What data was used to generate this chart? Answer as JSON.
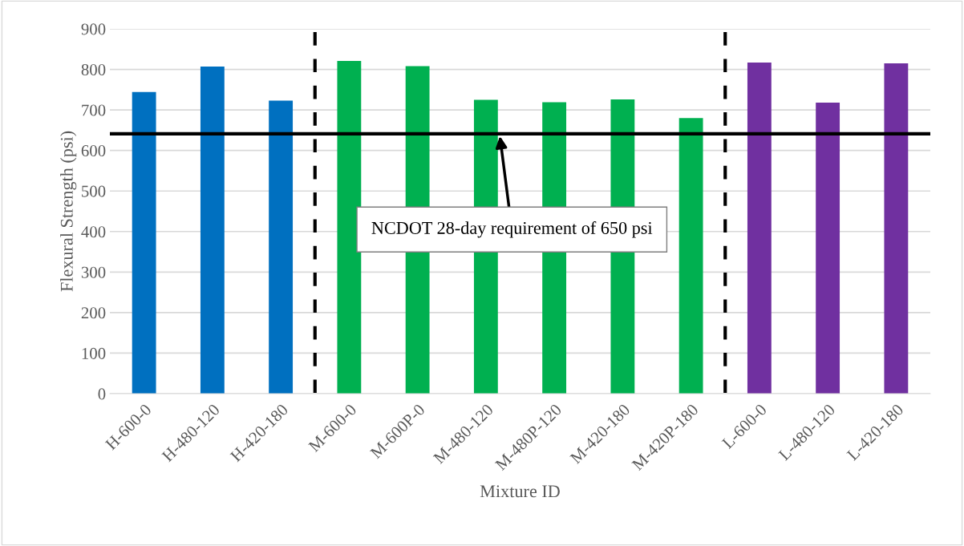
{
  "chart_data": {
    "type": "bar",
    "xlabel": "Mixture ID",
    "ylabel": "Flexural Strength (psi)",
    "categories": [
      "H-600-0",
      "H-480-120",
      "H-420-180",
      "M-600-0",
      "M-600P-0",
      "M-480-120",
      "M-480P-120",
      "M-420-180",
      "M-420P-180",
      "L-600-0",
      "L-480-120",
      "L-420-180"
    ],
    "values": [
      744,
      807,
      723,
      821,
      808,
      725,
      719,
      726,
      680,
      817,
      718,
      815
    ],
    "colors": [
      "#0070c0",
      "#0070c0",
      "#0070c0",
      "#00b050",
      "#00b050",
      "#00b050",
      "#00b050",
      "#00b050",
      "#00b050",
      "#7030a0",
      "#7030a0",
      "#7030a0"
    ],
    "ylim": [
      0,
      900
    ],
    "yticks": [
      0,
      100,
      200,
      300,
      400,
      500,
      600,
      700,
      800,
      900
    ],
    "grid": "y",
    "ref_lines": [
      {
        "axis": "y",
        "value": 641,
        "label": "NCDOT 28-day requirement of 650 psi",
        "color": "#000000",
        "line_style": "solid"
      }
    ]
  }
}
